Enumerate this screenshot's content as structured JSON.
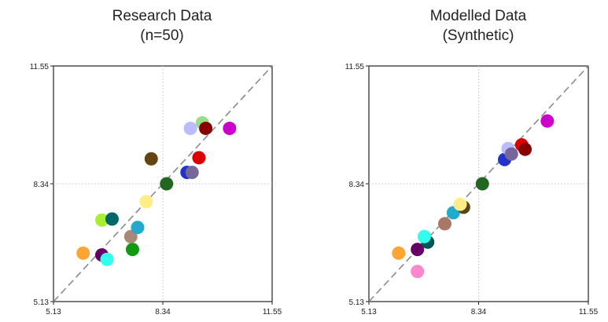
{
  "chart_data": [
    {
      "type": "scatter",
      "title": "Research Data",
      "subtitle": "(n=50)",
      "xlabel": "",
      "ylabel": "",
      "xlim": [
        5.13,
        11.55
      ],
      "ylim": [
        5.13,
        11.55
      ],
      "x_ticks": [
        "5.13",
        "8.34",
        "11.55"
      ],
      "y_ticks": [
        "5.13",
        "8.34",
        "11.55"
      ],
      "grid": "dotted at midline",
      "reference_line": "y = x (dashed)",
      "points": [
        {
          "x": 6.0,
          "y": 6.45,
          "color": "#ffa533"
        },
        {
          "x": 6.55,
          "y": 6.4,
          "color": "#660066"
        },
        {
          "x": 6.7,
          "y": 6.28,
          "color": "#33ffee"
        },
        {
          "x": 6.55,
          "y": 7.35,
          "color": "#aaee33"
        },
        {
          "x": 6.85,
          "y": 7.38,
          "color": "#006666"
        },
        {
          "x": 7.45,
          "y": 6.55,
          "color": "#119911"
        },
        {
          "x": 7.4,
          "y": 6.9,
          "color": "#aa8877"
        },
        {
          "x": 7.6,
          "y": 7.15,
          "color": "#22aacc"
        },
        {
          "x": 7.85,
          "y": 7.85,
          "color": "#ffee88"
        },
        {
          "x": 8.0,
          "y": 9.02,
          "color": "#664411"
        },
        {
          "x": 8.45,
          "y": 8.34,
          "color": "#226622"
        },
        {
          "x": 9.05,
          "y": 8.65,
          "color": "#2233cc"
        },
        {
          "x": 9.2,
          "y": 8.65,
          "color": "#776699"
        },
        {
          "x": 9.4,
          "y": 9.05,
          "color": "#dd0000"
        },
        {
          "x": 9.5,
          "y": 10.0,
          "color": "#99dd88"
        },
        {
          "x": 9.15,
          "y": 9.85,
          "color": "#bbbbff"
        },
        {
          "x": 9.6,
          "y": 9.85,
          "color": "#880000"
        },
        {
          "x": 10.3,
          "y": 9.85,
          "color": "#cc00cc"
        }
      ]
    },
    {
      "type": "scatter",
      "title": "Modelled Data",
      "subtitle": "(Synthetic)",
      "xlabel": "",
      "ylabel": "",
      "xlim": [
        5.13,
        11.55
      ],
      "ylim": [
        5.13,
        11.55
      ],
      "x_ticks": [
        "5.13",
        "8.34",
        "11.55"
      ],
      "y_ticks": [
        "5.13",
        "8.34",
        "11.55"
      ],
      "grid": "dotted at midline",
      "reference_line": "y = x (dashed)",
      "points": [
        {
          "x": 6.0,
          "y": 6.45,
          "color": "#ffa533"
        },
        {
          "x": 6.55,
          "y": 5.95,
          "color": "#ff88cc"
        },
        {
          "x": 6.55,
          "y": 6.55,
          "color": "#660066"
        },
        {
          "x": 6.85,
          "y": 6.75,
          "color": "#005555"
        },
        {
          "x": 6.75,
          "y": 6.9,
          "color": "#33ffee"
        },
        {
          "x": 7.35,
          "y": 7.25,
          "color": "#aa7766"
        },
        {
          "x": 7.6,
          "y": 7.55,
          "color": "#22aacc"
        },
        {
          "x": 7.9,
          "y": 7.7,
          "color": "#554422"
        },
        {
          "x": 7.8,
          "y": 7.78,
          "color": "#ffee88"
        },
        {
          "x": 8.45,
          "y": 8.34,
          "color": "#226622"
        },
        {
          "x": 9.1,
          "y": 9.0,
          "color": "#2233cc"
        },
        {
          "x": 9.2,
          "y": 9.3,
          "color": "#bbbbff"
        },
        {
          "x": 9.3,
          "y": 9.15,
          "color": "#776699"
        },
        {
          "x": 9.6,
          "y": 9.4,
          "color": "#dd0000"
        },
        {
          "x": 9.7,
          "y": 9.28,
          "color": "#880000"
        },
        {
          "x": 10.35,
          "y": 10.05,
          "color": "#cc00cc"
        }
      ]
    }
  ]
}
